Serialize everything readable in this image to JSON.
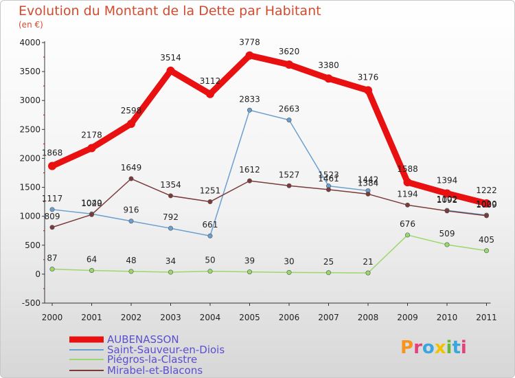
{
  "header": {
    "title": "Evolution du Montant de la Dette par Habitant",
    "subtitle": "(en €)"
  },
  "logo": {
    "text": "Proxiti"
  },
  "chart_data": {
    "type": "line",
    "title": "Evolution du Montant de la Dette par Habitant",
    "subtitle": "(en €)",
    "xlabel": "",
    "ylabel": "",
    "x": [
      "2000",
      "2001",
      "2002",
      "2003",
      "2004",
      "2005",
      "2006",
      "2007",
      "2008",
      "2009",
      "2010",
      "2011"
    ],
    "ylim": [
      -500,
      4000
    ],
    "yticks": [
      -500,
      0,
      500,
      1000,
      1500,
      2000,
      2500,
      3000,
      3500,
      4000
    ],
    "grid": false,
    "legend_position": "bottom-left",
    "series": [
      {
        "name": "AUBENASSON",
        "color": "#e81010",
        "values": [
          1868,
          2178,
          2598,
          3514,
          3112,
          3778,
          3620,
          3380,
          3176,
          1588,
          1394,
          1222
        ],
        "labels": [
          "1868",
          "2178",
          "2598",
          "3514",
          "3112",
          "3778",
          "3620",
          "3380",
          "3176",
          "1588",
          "1394",
          "1222"
        ]
      },
      {
        "name": "Saint-Sauveur-en-Diois",
        "color": "#6a9fd0",
        "values": [
          1117,
          1040,
          916,
          792,
          661,
          2833,
          2663,
          1523,
          1442,
          null,
          1102,
          1020
        ],
        "labels": [
          "1117",
          "1040",
          "916",
          "792",
          "661",
          "2833",
          "2663",
          "1523",
          "1442",
          "",
          "1102",
          "1020"
        ]
      },
      {
        "name": "Piégros-la-Clastre",
        "color": "#9ad86a",
        "values": [
          87,
          64,
          48,
          34,
          50,
          39,
          30,
          25,
          21,
          676,
          509,
          405
        ],
        "labels": [
          "87",
          "64",
          "48",
          "34",
          "50",
          "39",
          "30",
          "25",
          "21",
          "676",
          "509",
          "405"
        ]
      },
      {
        "name": "Mirabel-et-Blacons",
        "color": "#7a3a3a",
        "values": [
          809,
          1029,
          1649,
          1354,
          1251,
          1612,
          1527,
          1461,
          1384,
          1194,
          1092,
          1009
        ],
        "labels": [
          "809",
          "1029",
          "1649",
          "1354",
          "1251",
          "1612",
          "1527",
          "1461",
          "1384",
          "1194",
          "1092",
          "1009"
        ]
      }
    ]
  }
}
